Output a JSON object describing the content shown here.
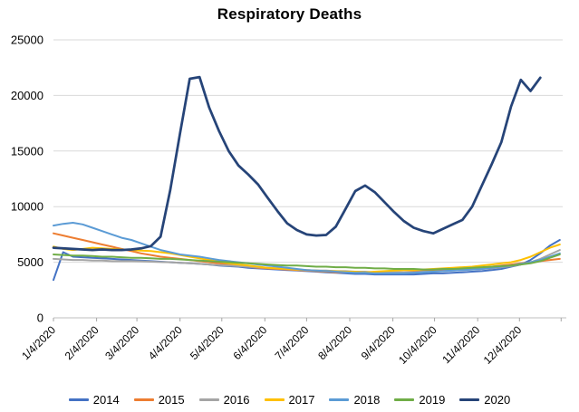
{
  "title": "Respiratory Deaths",
  "colors": {
    "grid": "#D9D9D9",
    "axis": "#BFBFBF",
    "tick": "#A6A6A6",
    "text": "#000000"
  },
  "chart_data": {
    "type": "line",
    "title": "Respiratory Deaths",
    "xlabel": "",
    "ylabel": "",
    "grid": "horizontal",
    "legend_position": "bottom",
    "ylim": [
      0,
      25000
    ],
    "y_ticks": [
      0,
      5000,
      10000,
      15000,
      20000,
      25000
    ],
    "y_tick_labels": [
      "0",
      "5000",
      "10000",
      "15000",
      "20000",
      "25000"
    ],
    "x_unit": "weeks since 1/4/2020, weekly data points",
    "xlim_weeks": [
      0,
      52.3
    ],
    "x_tick_labels": [
      "1/4/2020",
      "2/4/2020",
      "3/4/2020",
      "4/4/2020",
      "5/4/2020",
      "6/4/2020",
      "7/4/2020",
      "8/4/2020",
      "9/4/2020",
      "10/4/2020",
      "11/4/2020",
      "12/4/2020"
    ],
    "x_tick_weeks": [
      0,
      4.43,
      8.57,
      13,
      17.29,
      21.71,
      26,
      30.43,
      34.86,
      39.14,
      43.57,
      47.86
    ],
    "x_axis_end_tick_week": 52.14,
    "series": [
      {
        "name": "2014",
        "color": "#4472C4",
        "line_width": 2,
        "values": [
          3400,
          5900,
          5500,
          5450,
          5400,
          5350,
          5300,
          5250,
          5200,
          5150,
          5100,
          5050,
          5000,
          4950,
          4900,
          4850,
          4800,
          4700,
          4650,
          4600,
          4500,
          4450,
          4400,
          4350,
          4300,
          4250,
          4200,
          4150,
          4100,
          4050,
          4000,
          3950,
          3950,
          3900,
          3900,
          3900,
          3900,
          3900,
          3950,
          4000,
          4000,
          4050,
          4100,
          4150,
          4200,
          4300,
          4400,
          4600,
          4800,
          5200,
          5800,
          6500,
          7000
        ]
      },
      {
        "name": "2015",
        "color": "#ED7D31",
        "line_width": 2,
        "values": [
          7600,
          7400,
          7200,
          7000,
          6800,
          6600,
          6400,
          6200,
          6000,
          5800,
          5650,
          5500,
          5400,
          5300,
          5200,
          5100,
          5000,
          4900,
          4800,
          4700,
          4600,
          4500,
          4450,
          4400,
          4350,
          4300,
          4250,
          4200,
          4150,
          4100,
          4100,
          4100,
          4100,
          4100,
          4100,
          4100,
          4100,
          4150,
          4200,
          4250,
          4300,
          4350,
          4400,
          4450,
          4500,
          4600,
          4700,
          4800,
          4900,
          5000,
          5100,
          5200,
          5300
        ]
      },
      {
        "name": "2016",
        "color": "#A5A5A5",
        "line_width": 2,
        "values": [
          5300,
          5250,
          5200,
          5200,
          5150,
          5150,
          5100,
          5100,
          5100,
          5080,
          5050,
          5020,
          5000,
          4950,
          4900,
          4850,
          4800,
          4750,
          4700,
          4650,
          4600,
          4550,
          4500,
          4450,
          4400,
          4350,
          4300,
          4250,
          4250,
          4200,
          4200,
          4150,
          4150,
          4100,
          4100,
          4100,
          4100,
          4100,
          4150,
          4150,
          4200,
          4250,
          4300,
          4350,
          4400,
          4450,
          4550,
          4650,
          4800,
          5000,
          5300,
          5700,
          6100
        ]
      },
      {
        "name": "2017",
        "color": "#FFC000",
        "line_width": 2,
        "values": [
          6400,
          6200,
          6100,
          6200,
          6300,
          6250,
          6200,
          6150,
          6100,
          6050,
          6000,
          5900,
          5800,
          5650,
          5500,
          5350,
          5200,
          5050,
          4900,
          4800,
          4700,
          4600,
          4500,
          4450,
          4400,
          4350,
          4300,
          4250,
          4200,
          4200,
          4150,
          4150,
          4100,
          4150,
          4200,
          4250,
          4300,
          4300,
          4350,
          4400,
          4450,
          4500,
          4550,
          4600,
          4700,
          4800,
          4900,
          5000,
          5200,
          5500,
          5900,
          6300,
          6600
        ]
      },
      {
        "name": "2018",
        "color": "#5B9BD5",
        "line_width": 2,
        "values": [
          8300,
          8450,
          8550,
          8400,
          8100,
          7800,
          7500,
          7200,
          7000,
          6700,
          6400,
          6100,
          5900,
          5700,
          5600,
          5500,
          5350,
          5200,
          5100,
          5000,
          4900,
          4800,
          4700,
          4600,
          4500,
          4400,
          4300,
          4250,
          4200,
          4150,
          4100,
          4050,
          4050,
          4000,
          4000,
          4000,
          4000,
          4050,
          4100,
          4150,
          4200,
          4250,
          4300,
          4350,
          4400,
          4500,
          4600,
          4700,
          4850,
          5000,
          5200,
          5500,
          5800
        ]
      },
      {
        "name": "2019",
        "color": "#70AD47",
        "line_width": 2,
        "values": [
          5700,
          5650,
          5600,
          5600,
          5550,
          5500,
          5500,
          5450,
          5400,
          5400,
          5350,
          5300,
          5300,
          5250,
          5200,
          5150,
          5100,
          5050,
          5000,
          4950,
          4900,
          4850,
          4800,
          4750,
          4700,
          4700,
          4650,
          4600,
          4600,
          4550,
          4550,
          4500,
          4500,
          4450,
          4450,
          4400,
          4400,
          4400,
          4350,
          4350,
          4400,
          4400,
          4450,
          4500,
          4550,
          4600,
          4650,
          4700,
          4800,
          4900,
          5100,
          5400,
          5700
        ]
      },
      {
        "name": "2020",
        "color": "#264478",
        "line_width": 2.75,
        "values": [
          6300,
          6250,
          6200,
          6150,
          6100,
          6150,
          6100,
          6100,
          6150,
          6250,
          6450,
          7300,
          11500,
          16600,
          21500,
          21650,
          18900,
          16800,
          15000,
          13700,
          12900,
          12000,
          10800,
          9600,
          8500,
          7900,
          7500,
          7400,
          7450,
          8200,
          9800,
          11400,
          11900,
          11300,
          10400,
          9500,
          8700,
          8100,
          7800,
          7600,
          8000,
          8400,
          8800,
          10000,
          11900,
          13800,
          15800,
          19000,
          21400,
          20400,
          21600
        ]
      }
    ]
  },
  "legend": {
    "items": [
      "2014",
      "2015",
      "2016",
      "2017",
      "2018",
      "2019",
      "2020"
    ]
  }
}
